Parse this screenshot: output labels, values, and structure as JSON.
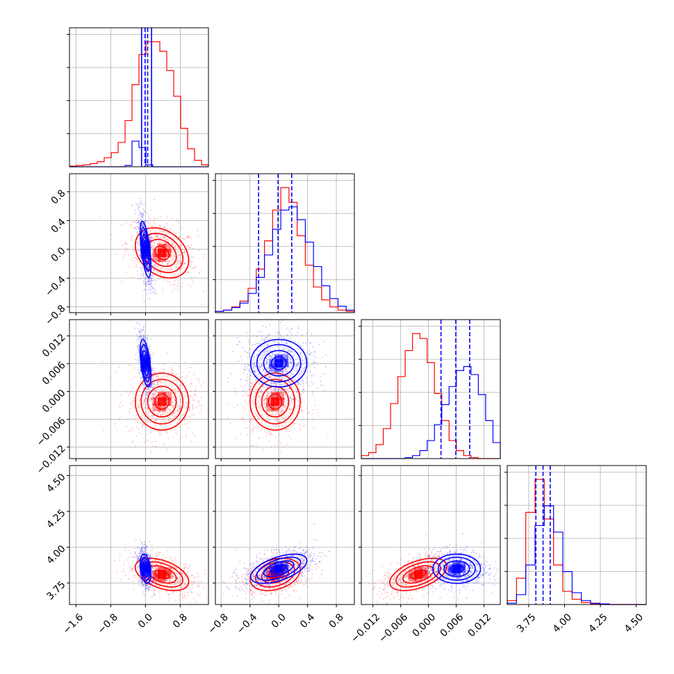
{
  "colors": {
    "series_red": "#ff0000",
    "series_blue": "#0000ff",
    "grid": "#b0b0b0",
    "axes": "#000000"
  },
  "chart_data": {
    "type": "corner",
    "grid": true,
    "parameters": [
      {
        "key": "p0",
        "range": [
          -1.75,
          1.45
        ],
        "ticks": [
          -1.6,
          -0.8,
          0.0,
          0.8
        ],
        "tick_labels": [
          "−1.6",
          "−0.8",
          "0.0",
          "0.8"
        ]
      },
      {
        "key": "p1",
        "range": [
          -0.88,
          1.05
        ],
        "ticks": [
          -0.8,
          -0.4,
          0.0,
          0.4,
          0.8
        ],
        "tick_labels": [
          "−0.8",
          "−0.4",
          "0.0",
          "0.4",
          "0.8"
        ]
      },
      {
        "key": "p2",
        "range": [
          -0.0145,
          0.0155
        ],
        "ticks": [
          -0.012,
          -0.006,
          0.0,
          0.006,
          0.012
        ],
        "tick_labels": [
          "−0.012",
          "−0.006",
          "0.000",
          "0.006",
          "0.012"
        ]
      },
      {
        "key": "p3",
        "range": [
          3.6,
          4.57
        ],
        "ticks": [
          3.75,
          4.0,
          4.25,
          4.5
        ],
        "tick_labels": [
          "3.75",
          "4.00",
          "4.25",
          "4.50"
        ]
      }
    ],
    "series": [
      {
        "color": "red",
        "means": [
          0.38,
          -0.05,
          -0.0022,
          3.81
        ],
        "sds": [
          0.3,
          0.17,
          0.003,
          0.055
        ],
        "correlations": {
          "0-1": -0.3,
          "0-2": 0.0,
          "0-3": -0.45,
          "1-2": 0.0,
          "1-3": 0.3,
          "2-3": 0.5
        }
      },
      {
        "color": "blue",
        "means": [
          0.0,
          0.0,
          0.0061,
          3.85
        ],
        "sds": [
          0.06,
          0.19,
          0.0025,
          0.05
        ],
        "correlations": {
          "0-1": -0.6,
          "0-2": -0.5,
          "0-3": -0.3,
          "1-2": 0.0,
          "1-3": 0.55,
          "2-3": 0.0
        }
      }
    ],
    "quantiles": [
      {
        "param": "p0",
        "values": [
          -0.09,
          -0.01,
          0.05,
          0.14
        ]
      },
      {
        "param": "p1",
        "values": [
          -0.28,
          -0.01,
          0.18
        ]
      },
      {
        "param": "p2",
        "values": [
          0.0027,
          0.0059,
          0.0089
        ]
      },
      {
        "param": "p3",
        "values": [
          3.8,
          3.85,
          3.9
        ]
      }
    ],
    "histograms": {
      "red": {
        "p0": [
          1,
          2,
          3,
          5,
          8,
          14,
          22,
          38,
          72,
          128,
          175,
          195,
          195,
          180,
          150,
          110,
          60,
          28,
          10,
          3
        ],
        "p1": [
          2,
          4,
          9,
          18,
          38,
          68,
          112,
          160,
          195,
          172,
          120,
          74,
          40,
          20,
          9,
          4,
          2
        ],
        "p2": [
          3,
          6,
          14,
          30,
          55,
          82,
          108,
          125,
          120,
          96,
          65,
          38,
          18,
          8,
          3,
          1,
          0,
          0,
          0
        ],
        "p3": [
          6,
          40,
          140,
          190,
          130,
          60,
          20,
          8,
          3,
          1,
          0,
          0,
          0,
          0,
          0
        ]
      },
      "blue": {
        "p0": [
          0,
          0,
          0,
          0,
          0,
          0,
          0,
          0,
          2,
          40,
          30,
          3,
          0,
          0,
          0,
          0,
          0,
          0,
          0,
          0
        ],
        "p1": [
          2,
          4,
          8,
          15,
          30,
          55,
          90,
          130,
          160,
          165,
          145,
          110,
          72,
          42,
          22,
          10,
          4
        ],
        "p2": [
          0,
          0,
          0,
          0,
          0,
          0,
          1,
          3,
          8,
          18,
          34,
          54,
          72,
          88,
          92,
          84,
          64,
          38,
          16
        ],
        "p3": [
          2,
          15,
          60,
          120,
          150,
          110,
          50,
          18,
          6,
          2,
          1,
          0,
          0,
          0,
          0
        ]
      }
    }
  }
}
